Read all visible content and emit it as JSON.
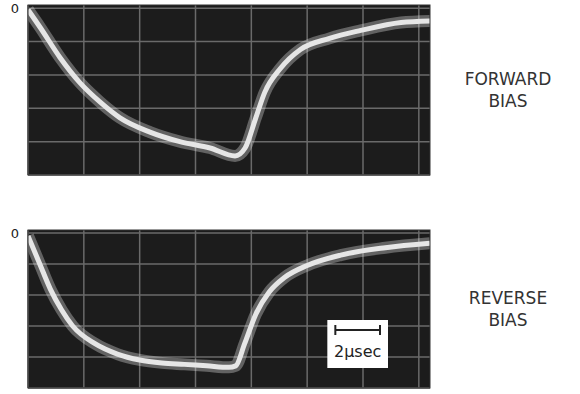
{
  "chart_data": [
    {
      "type": "line",
      "title": "FORWARD BIAS",
      "color": "#e6e6e6",
      "grid": true,
      "tick_labels": false,
      "x": [
        0,
        0.54,
        1.43,
        2.33,
        3.22,
        4.12,
        5.46,
        6.8,
        8.15,
        9.27,
        9.72,
        10.2,
        10.6,
        11.3,
        12.2,
        13.5,
        14.9,
        16.7,
        18
      ],
      "values": [
        -0.01,
        -0.12,
        -0.31,
        -0.47,
        -0.59,
        -0.69,
        -0.78,
        -0.84,
        -0.88,
        -0.93,
        -0.88,
        -0.69,
        -0.53,
        -0.38,
        -0.26,
        -0.19,
        -0.14,
        -0.09,
        -0.08
      ],
      "xlim": [
        0,
        18
      ],
      "ylim": [
        -1.05,
        0.02
      ],
      "xticks": [
        0,
        2.5,
        5,
        7.5,
        10,
        12.5,
        15,
        17.5
      ],
      "yticks": [
        0,
        -0.21,
        -0.42,
        -0.63,
        -0.84,
        -1.05
      ],
      "annotations": [
        {
          "text": "0",
          "y": 0
        }
      ]
    },
    {
      "type": "line",
      "title": "REVERSE BIAS",
      "color": "#e6e6e6",
      "grid": true,
      "tick_labels": false,
      "x": [
        0,
        0.5,
        1,
        1.5,
        2,
        3,
        4,
        5,
        6,
        7,
        8,
        9,
        9.3,
        9.7,
        10.2,
        10.8,
        11.5,
        12.5,
        14,
        16,
        18
      ],
      "values": [
        -0.02,
        -0.2,
        -0.38,
        -0.52,
        -0.63,
        -0.75,
        -0.82,
        -0.86,
        -0.88,
        -0.89,
        -0.9,
        -0.91,
        -0.9,
        -0.75,
        -0.55,
        -0.4,
        -0.3,
        -0.22,
        -0.15,
        -0.1,
        -0.07
      ],
      "xlim": [
        0,
        18
      ],
      "ylim": [
        -1.05,
        0.02
      ],
      "xticks": [
        0,
        2.5,
        5,
        7.5,
        10,
        12.5,
        15,
        17.5
      ],
      "yticks": [
        0,
        -0.21,
        -0.42,
        -0.63,
        -0.84,
        -1.05
      ],
      "annotations": [
        {
          "text": "0",
          "y": 0
        }
      ],
      "scale_bar": {
        "label": "2μsec",
        "length": 2
      }
    }
  ]
}
